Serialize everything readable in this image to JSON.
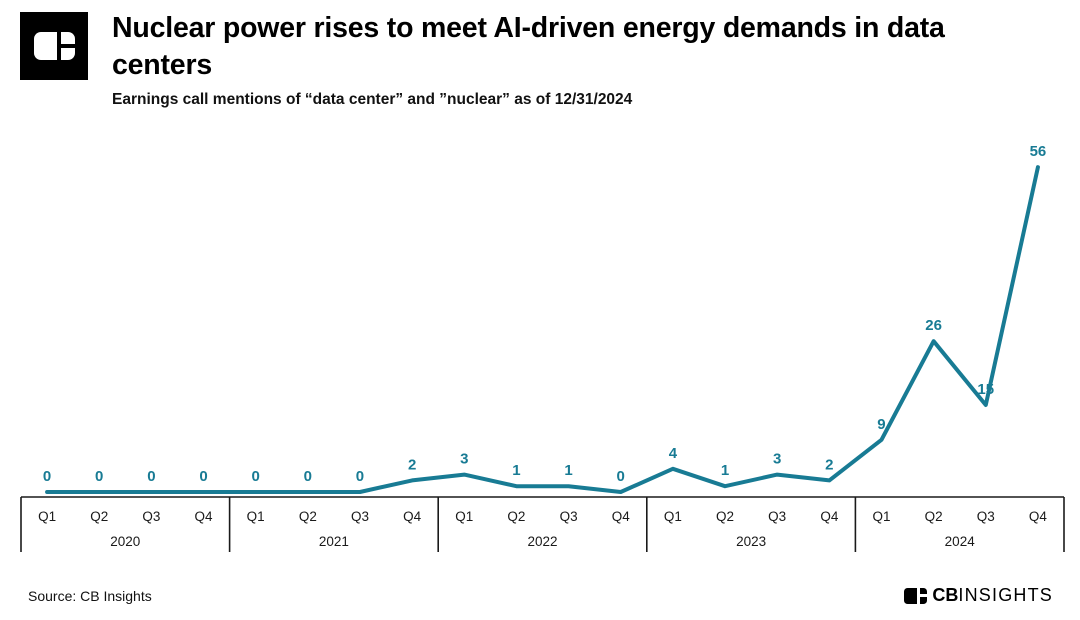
{
  "header": {
    "title_line1": "Nuclear power rises to meet AI-driven energy demands in data",
    "title_line2": "centers",
    "subtitle": "Earnings call mentions of “data center” and ”nuclear” as of 12/31/2024"
  },
  "footer": {
    "source": "Source: CB Insights",
    "brand_bold": "CB",
    "brand_light": "INSIGHTS"
  },
  "chart_data": {
    "type": "line",
    "title": "Nuclear power rises to meet AI-driven energy demands in data centers",
    "subtitle": "Earnings call mentions of “data center” and ”nuclear” as of 12/31/2024",
    "series": [
      {
        "name": "Earnings call mentions of data center and nuclear",
        "values": [
          0,
          0,
          0,
          0,
          0,
          0,
          0,
          2,
          3,
          1,
          1,
          0,
          4,
          1,
          3,
          2,
          9,
          26,
          15,
          56
        ]
      }
    ],
    "years": [
      {
        "year": "2020",
        "quarters": [
          "Q1",
          "Q2",
          "Q3",
          "Q4"
        ],
        "values": [
          0,
          0,
          0,
          0
        ]
      },
      {
        "year": "2021",
        "quarters": [
          "Q1",
          "Q2",
          "Q3",
          "Q4"
        ],
        "values": [
          0,
          0,
          0,
          2
        ]
      },
      {
        "year": "2022",
        "quarters": [
          "Q1",
          "Q2",
          "Q3",
          "Q4"
        ],
        "values": [
          3,
          1,
          1,
          0
        ]
      },
      {
        "year": "2023",
        "quarters": [
          "Q1",
          "Q2",
          "Q3",
          "Q4"
        ],
        "values": [
          4,
          1,
          3,
          2
        ]
      },
      {
        "year": "2024",
        "quarters": [
          "Q1",
          "Q2",
          "Q3",
          "Q4"
        ],
        "values": [
          9,
          26,
          15,
          56
        ]
      }
    ],
    "ylim": [
      0,
      56
    ],
    "grid": false,
    "legend": "none",
    "data_labels": true,
    "line_color": "#187b94",
    "label_color": "#187b94",
    "axis_color": "#1a1a1a"
  }
}
